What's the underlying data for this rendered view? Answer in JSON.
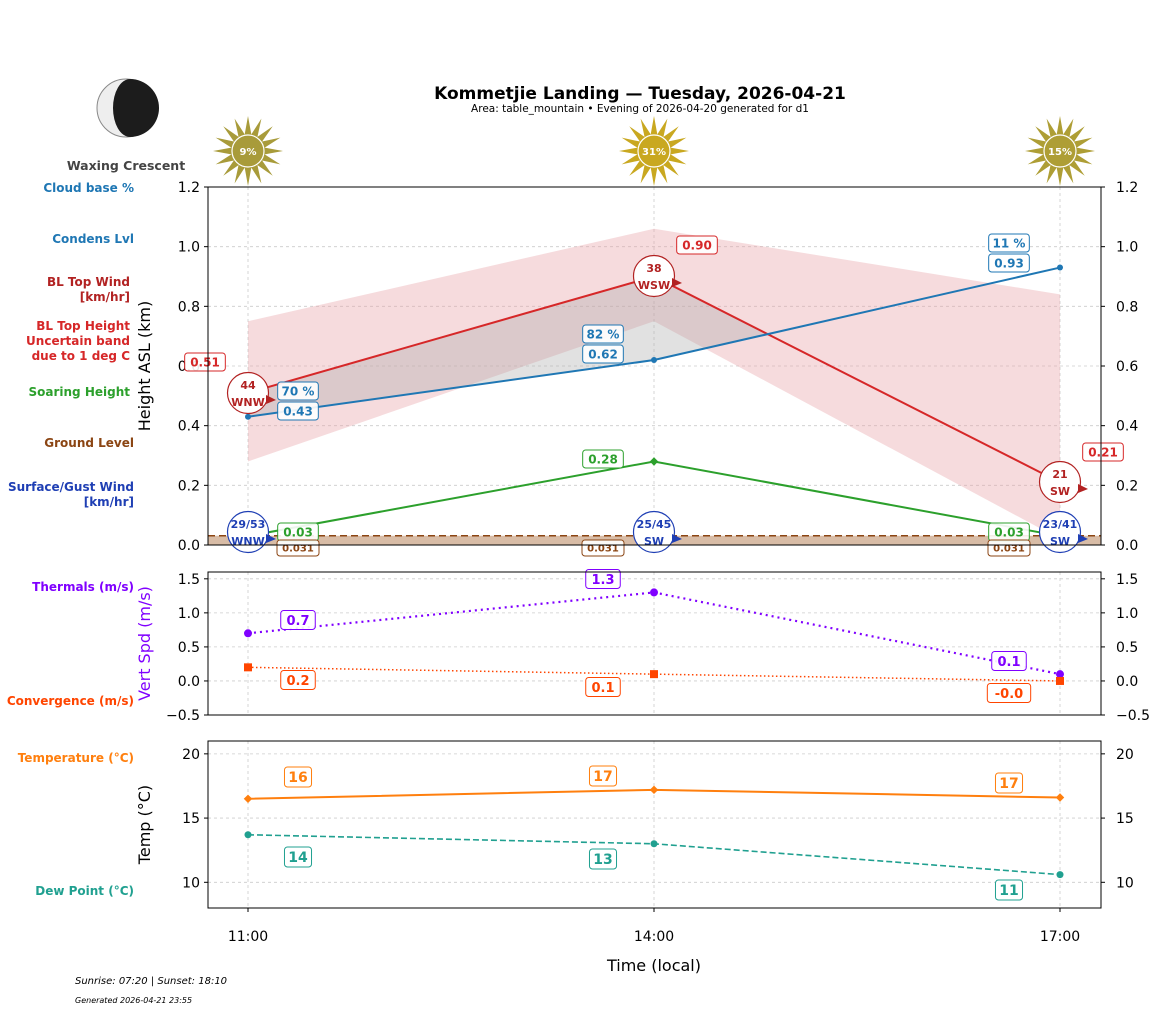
{
  "header": {
    "title": "Kommetjie Landing — Tuesday, 2026-04-21",
    "subtitle": "Area: table_mountain • Evening of 2026-04-20 generated for d1"
  },
  "moon": {
    "phase": "Waxing Crescent",
    "icon": "waxing-crescent-moon-icon"
  },
  "sun_cover": [
    "9%",
    "31%",
    "15%"
  ],
  "left_labels": {
    "cloud_base": "Cloud base %",
    "condens": "Condens Lvl",
    "bl_wind": [
      "BL Top Wind",
      "[km/hr]"
    ],
    "bl_height": [
      "BL Top Height",
      "Uncertain band",
      "due to 1 deg C"
    ],
    "soaring": "Soaring Height",
    "ground": "Ground Level",
    "surface_wind": [
      "Surface/Gust Wind",
      "[km/hr]"
    ],
    "thermals": "Thermals (m/s)",
    "convergence": "Convergence (m/s)",
    "temperature": "Temperature (°C)",
    "dew": "Dew Point (°C)"
  },
  "footer": {
    "sun": "Sunrise: 07:20 | Sunset: 18:10",
    "generated": "Generated 2026-04-21 23:55"
  },
  "colors": {
    "cloud": "#1f77b4",
    "bl": "#d62728",
    "wind_bl": "#b22222",
    "soaring": "#2ca02c",
    "ground": "#8b4513",
    "surface_wind": "#1f3fb4",
    "thermals": "#8000ff",
    "convergence": "#ff4500",
    "temperature": "#ff7f0e",
    "dew": "#20a090"
  },
  "chart_data": [
    {
      "type": "line",
      "ylabel": "Height ASL (km)",
      "ylim": [
        0,
        1.2
      ],
      "yticks": [
        "0.0",
        "0.2",
        "0.4",
        "0.6",
        "0.8",
        "1.0",
        "1.2"
      ],
      "x": [
        "11:00",
        "14:00",
        "17:00"
      ],
      "grid": true,
      "series": [
        {
          "key": "cloud_base",
          "values": [
            0.43,
            0.62,
            0.93
          ],
          "labels": [
            "0.43",
            "0.62",
            "0.93"
          ],
          "pct_labels": [
            "70 %",
            "82 %",
            "11 %"
          ]
        },
        {
          "key": "bl_top",
          "values": [
            0.51,
            0.9,
            0.21
          ],
          "labels": [
            "0.51",
            "0.90",
            "0.21"
          ],
          "band_lower": [
            0.28,
            0.75,
            0.02
          ],
          "band_upper": [
            0.75,
            1.06,
            0.84
          ],
          "wind": [
            [
              "44",
              "WNW"
            ],
            [
              "38",
              "WSW"
            ],
            [
              "21",
              "SW"
            ]
          ]
        },
        {
          "key": "soaring",
          "values": [
            0.03,
            0.28,
            0.03
          ],
          "labels": [
            "0.03",
            "0.28",
            "0.03"
          ]
        },
        {
          "key": "ground",
          "values": [
            0.031,
            0.031,
            0.031
          ],
          "labels": [
            "0.031",
            "0.031",
            "0.031"
          ]
        },
        {
          "key": "surface_wind",
          "wind": [
            [
              "29/53",
              "WNW"
            ],
            [
              "25/45",
              "SW"
            ],
            [
              "23/41",
              "SW"
            ]
          ]
        }
      ]
    },
    {
      "type": "line",
      "ylabel": "Vert Spd (m/s)",
      "ylim": [
        -0.5,
        1.6
      ],
      "yticks": [
        "−0.5",
        "0.0",
        "0.5",
        "1.0",
        "1.5"
      ],
      "x": [
        "11:00",
        "14:00",
        "17:00"
      ],
      "series": [
        {
          "key": "thermals",
          "values": [
            0.7,
            1.3,
            0.1
          ],
          "labels": [
            "0.7",
            "1.3",
            "0.1"
          ]
        },
        {
          "key": "convergence",
          "values": [
            0.2,
            0.1,
            0.0
          ],
          "labels": [
            "0.2",
            "0.1",
            "-0.0"
          ]
        }
      ]
    },
    {
      "type": "line",
      "ylabel": "Temp (°C)",
      "xlabel": "Time (local)",
      "ylim": [
        8,
        21
      ],
      "yticks": [
        "10",
        "15",
        "20"
      ],
      "x": [
        "11:00",
        "14:00",
        "17:00"
      ],
      "series": [
        {
          "key": "temperature",
          "values": [
            16.5,
            17.2,
            16.6
          ],
          "labels": [
            "16",
            "17",
            "17"
          ]
        },
        {
          "key": "dew",
          "values": [
            13.7,
            13.0,
            10.6
          ],
          "labels": [
            "14",
            "13",
            "11"
          ]
        }
      ]
    }
  ]
}
